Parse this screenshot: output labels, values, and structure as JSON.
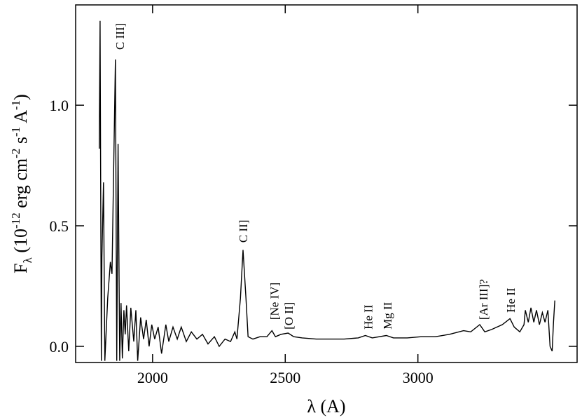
{
  "chart_data": {
    "type": "line",
    "color": "#000000",
    "xlabel": "λ (A)",
    "ylabel": [
      "F",
      "λ",
      " (10",
      "-12",
      " erg cm",
      "-2",
      " s",
      "-1",
      " A",
      "-1",
      ")"
    ],
    "xlim": [
      1710,
      3600
    ],
    "xticks": [
      2000,
      2500,
      3000
    ],
    "ylim": [
      -0.067,
      1.416
    ],
    "yticks": [
      {
        "value": 0,
        "label": "0.0"
      },
      {
        "value": 0.5,
        "label": "0.5"
      },
      {
        "value": 1,
        "label": "1.0"
      }
    ],
    "x": [
      1799,
      1802,
      1807,
      1809,
      1815,
      1820,
      1831,
      1841,
      1847,
      1860,
      1865,
      1870,
      1876,
      1881,
      1886,
      1892,
      1897,
      1902,
      1910,
      1918,
      1929,
      1937,
      1944,
      1955,
      1966,
      1976,
      1987,
      1997,
      2008,
      2021,
      2034,
      2050,
      2061,
      2077,
      2093,
      2108,
      2127,
      2146,
      2167,
      2188,
      2209,
      2233,
      2251,
      2273,
      2294,
      2310,
      2318,
      2331,
      2341,
      2352,
      2360,
      2378,
      2405,
      2431,
      2450,
      2463,
      2484,
      2511,
      2532,
      2564,
      2617,
      2669,
      2722,
      2775,
      2802,
      2828,
      2881,
      2908,
      2960,
      3013,
      3066,
      3119,
      3172,
      3199,
      3233,
      3252,
      3278,
      3318,
      3347,
      3363,
      3384,
      3400,
      3405,
      3416,
      3426,
      3437,
      3447,
      3458,
      3469,
      3479,
      3490,
      3498,
      3506,
      3511,
      3516
    ],
    "values": [
      0.82,
      1.35,
      -0.06,
      0.37,
      0.68,
      -0.06,
      0.2,
      0.35,
      0.3,
      1.19,
      -0.06,
      0.84,
      -0.06,
      0.18,
      -0.05,
      0.15,
      0.05,
      0.17,
      -0.02,
      0.16,
      0.02,
      0.15,
      -0.06,
      0.12,
      0.03,
      0.11,
      0.0,
      0.09,
      0.03,
      0.08,
      -0.03,
      0.09,
      0.02,
      0.08,
      0.03,
      0.08,
      0.02,
      0.06,
      0.03,
      0.05,
      0.01,
      0.04,
      0.0,
      0.03,
      0.02,
      0.06,
      0.03,
      0.2,
      0.4,
      0.2,
      0.04,
      0.03,
      0.04,
      0.04,
      0.065,
      0.04,
      0.05,
      0.055,
      0.04,
      0.035,
      0.03,
      0.03,
      0.03,
      0.035,
      0.045,
      0.035,
      0.045,
      0.035,
      0.035,
      0.04,
      0.04,
      0.05,
      0.065,
      0.06,
      0.09,
      0.06,
      0.07,
      0.09,
      0.115,
      0.08,
      0.06,
      0.09,
      0.15,
      0.1,
      0.16,
      0.1,
      0.15,
      0.09,
      0.14,
      0.1,
      0.15,
      0.0,
      -0.02,
      0.1,
      0.19
    ],
    "annotations": [
      {
        "text": "C III]",
        "x": 1876,
        "y": 1.23
      },
      {
        "text": "C II]",
        "x": 2341,
        "y": 0.43
      },
      {
        "text": "[Ne IV]",
        "x": 2458,
        "y": 0.11
      },
      {
        "text": "[O II]",
        "x": 2513,
        "y": 0.07
      },
      {
        "text": "He II",
        "x": 2812,
        "y": 0.07
      },
      {
        "text": "Mg II",
        "x": 2884,
        "y": 0.07
      },
      {
        "text": "[Ar III]?",
        "x": 3246,
        "y": 0.11
      },
      {
        "text": "He II",
        "x": 3349,
        "y": 0.14
      }
    ]
  }
}
